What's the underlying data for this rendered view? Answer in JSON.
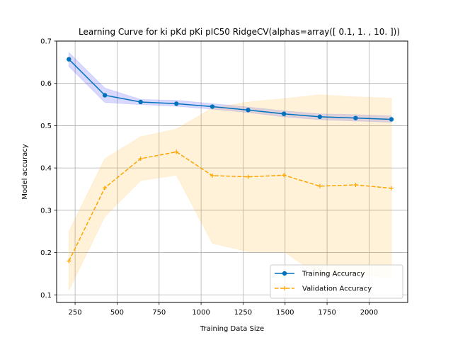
{
  "chart_data": {
    "type": "line",
    "title": "Learning Curve for ki pKd pKi pIC50 RidgeCV(alphas=array([ 0.1,  1. , 10. ]))",
    "xlabel": "Training Data Size",
    "ylabel": "Model accuracy",
    "xlim": [
      140,
      2230
    ],
    "ylim": [
      0.082,
      0.7
    ],
    "x_ticks": [
      250,
      500,
      750,
      1000,
      1250,
      1500,
      1750,
      2000
    ],
    "y_ticks": [
      0.1,
      0.2,
      0.3,
      0.4,
      0.5,
      0.6,
      0.7
    ],
    "grid": true,
    "legend_position": "lower-right",
    "x": [
      213,
      427,
      640,
      853,
      1067,
      1280,
      1493,
      1707,
      1920,
      2133
    ],
    "series": [
      {
        "name": "Training Accuracy",
        "color": "#0072bd",
        "band_color": "#0000ff",
        "line_style": "solid",
        "marker": "circle",
        "values": [
          0.657,
          0.572,
          0.556,
          0.552,
          0.545,
          0.537,
          0.528,
          0.521,
          0.518,
          0.515
        ],
        "lower": [
          0.64,
          0.555,
          0.55,
          0.546,
          0.539,
          0.531,
          0.521,
          0.514,
          0.511,
          0.508
        ],
        "upper": [
          0.673,
          0.589,
          0.562,
          0.56,
          0.552,
          0.544,
          0.535,
          0.528,
          0.526,
          0.523
        ]
      },
      {
        "name": "Validation Accuracy",
        "color": "#ffa500",
        "band_color": "#ffa500",
        "line_style": "dashed",
        "marker": "plus",
        "values": [
          0.18,
          0.353,
          0.422,
          0.438,
          0.382,
          0.379,
          0.383,
          0.357,
          0.36,
          0.352
        ],
        "lower": [
          0.11,
          0.285,
          0.37,
          0.383,
          0.222,
          0.202,
          0.202,
          0.145,
          0.15,
          0.14
        ],
        "upper": [
          0.25,
          0.422,
          0.474,
          0.492,
          0.542,
          0.556,
          0.564,
          0.573,
          0.568,
          0.565
        ]
      }
    ]
  }
}
